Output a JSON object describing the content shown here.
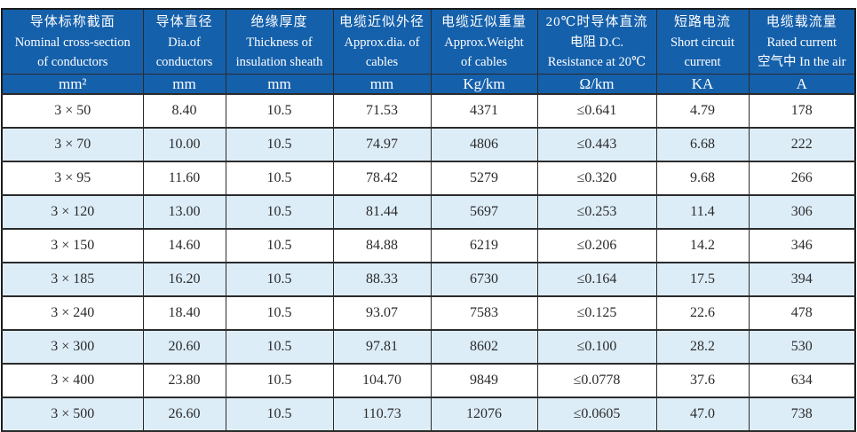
{
  "colors": {
    "header_bg": "#1560ab",
    "header_text": "#ffffff",
    "row_alt_bg": "#ddedf8",
    "body_text": "#2b2b2b",
    "border": "#2b2b2b"
  },
  "table": {
    "columns": [
      {
        "line1": "导体标称截面",
        "line2": "Nominal cross-section",
        "line3": "of conductors",
        "unit": "mm²"
      },
      {
        "line1": "导体直径",
        "line2": "Dia.of",
        "line3": "conductors",
        "unit": "mm"
      },
      {
        "line1": "绝缘厚度",
        "line2": "Thickness of",
        "line3": "insulation sheath",
        "unit": "mm"
      },
      {
        "line1": "电缆近似外径",
        "line2": "Approx.dia. of",
        "line3": "cables",
        "unit": "mm"
      },
      {
        "line1": "电缆近似重量",
        "line2": "Approx.Weight",
        "line3": "of cables",
        "unit": "Kg/km"
      },
      {
        "line1": "20℃时导体直流",
        "line2": "电阻 D.C.",
        "line3": "Resistance at 20℃",
        "unit": "Ω/km"
      },
      {
        "line1": "短路电流",
        "line2": "Short circuit",
        "line3": "current",
        "unit": "KA"
      },
      {
        "line1": "电缆载流量",
        "line2": "Rated current",
        "line3": "空气中 In the air",
        "unit": "A"
      }
    ],
    "rows": [
      [
        "3 × 50",
        "8.40",
        "10.5",
        "71.53",
        "4371",
        "≤0.641",
        "4.79",
        "178"
      ],
      [
        "3 × 70",
        "10.00",
        "10.5",
        "74.97",
        "4806",
        "≤0.443",
        "6.68",
        "222"
      ],
      [
        "3 × 95",
        "11.60",
        "10.5",
        "78.42",
        "5279",
        "≤0.320",
        "9.68",
        "266"
      ],
      [
        "3 × 120",
        "13.00",
        "10.5",
        "81.44",
        "5697",
        "≤0.253",
        "11.4",
        "306"
      ],
      [
        "3 × 150",
        "14.60",
        "10.5",
        "84.88",
        "6219",
        "≤0.206",
        "14.2",
        "346"
      ],
      [
        "3 × 185",
        "16.20",
        "10.5",
        "88.33",
        "6730",
        "≤0.164",
        "17.5",
        "394"
      ],
      [
        "3 × 240",
        "18.40",
        "10.5",
        "93.07",
        "7583",
        "≤0.125",
        "22.6",
        "478"
      ],
      [
        "3 × 300",
        "20.60",
        "10.5",
        "97.81",
        "8602",
        "≤0.100",
        "28.2",
        "530"
      ],
      [
        "3 × 400",
        "23.80",
        "10.5",
        "104.70",
        "9849",
        "≤0.0778",
        "37.6",
        "634"
      ],
      [
        "3 × 500",
        "26.60",
        "10.5",
        "110.73",
        "12076",
        "≤0.0605",
        "47.0",
        "738"
      ]
    ]
  }
}
